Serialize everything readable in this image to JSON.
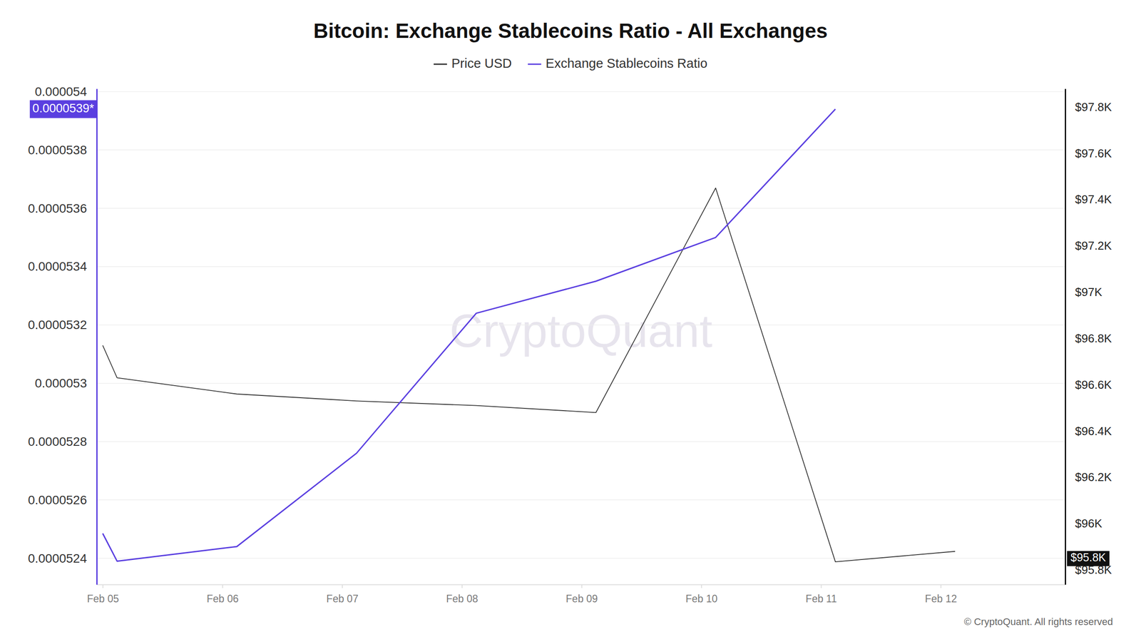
{
  "chart_data": {
    "type": "line",
    "title": "Bitcoin: Exchange Stablecoins Ratio - All Exchanges",
    "legend": "top",
    "grid": true,
    "x": [
      0,
      0.12,
      1.12,
      2.12,
      3.12,
      4.12,
      5.12,
      6.12,
      7.12
    ],
    "xlim": [
      -0.05,
      8.04
    ],
    "xticks": [
      {
        "value": 0,
        "label": "Feb 05"
      },
      {
        "value": 1,
        "label": "Feb 06"
      },
      {
        "value": 2,
        "label": "Feb 07"
      },
      {
        "value": 3,
        "label": "Feb 08"
      },
      {
        "value": 4,
        "label": "Feb 09"
      },
      {
        "value": 5,
        "label": "Feb 10"
      },
      {
        "value": 6,
        "label": "Feb 11"
      },
      {
        "value": 7,
        "label": "Feb 12"
      }
    ],
    "ylim": [
      5.231e-05,
      5.401e-05
    ],
    "yticks": [
      5.24e-05,
      5.26e-05,
      5.28e-05,
      5.3e-05,
      5.32e-05,
      5.34e-05,
      5.36e-05,
      5.38e-05,
      5.4e-05
    ],
    "y2lim": [
      95737,
      97879
    ],
    "y2ticks": [
      {
        "value": 95800,
        "label": "$95.8K"
      },
      {
        "value": 96000,
        "label": "$96K"
      },
      {
        "value": 96200,
        "label": "$96.2K"
      },
      {
        "value": 96400,
        "label": "$96.4K"
      },
      {
        "value": 96600,
        "label": "$96.6K"
      },
      {
        "value": 96800,
        "label": "$96.8K"
      },
      {
        "value": 97000,
        "label": "$97K"
      },
      {
        "value": 97200,
        "label": "$97.2K"
      },
      {
        "value": 97400,
        "label": "$97.4K"
      },
      {
        "value": 97600,
        "label": "$97.6K"
      },
      {
        "value": 97800,
        "label": "$97.8K"
      }
    ],
    "series": [
      {
        "name": "Price USD",
        "color": "#333333",
        "axis": "y2",
        "values": [
          96770,
          96630,
          96560,
          96530,
          96510,
          96480,
          97450,
          95835,
          95880
        ]
      },
      {
        "name": "Exchange Stablecoins Ratio",
        "color": "#5a3fe0",
        "values": [
          5.2485e-05,
          5.239e-05,
          5.244e-05,
          5.276e-05,
          5.324e-05,
          5.335e-05,
          5.35e-05,
          5.394e-05,
          null
        ]
      }
    ],
    "annotations": [
      {
        "text": "0.0000539*",
        "value": 5.394e-05,
        "axis": "y"
      },
      {
        "text": "$95.8K",
        "value": 95849,
        "axis": "y2"
      }
    ],
    "watermark": "CryptoQuant",
    "credit": "© CryptoQuant. All rights reserved"
  }
}
